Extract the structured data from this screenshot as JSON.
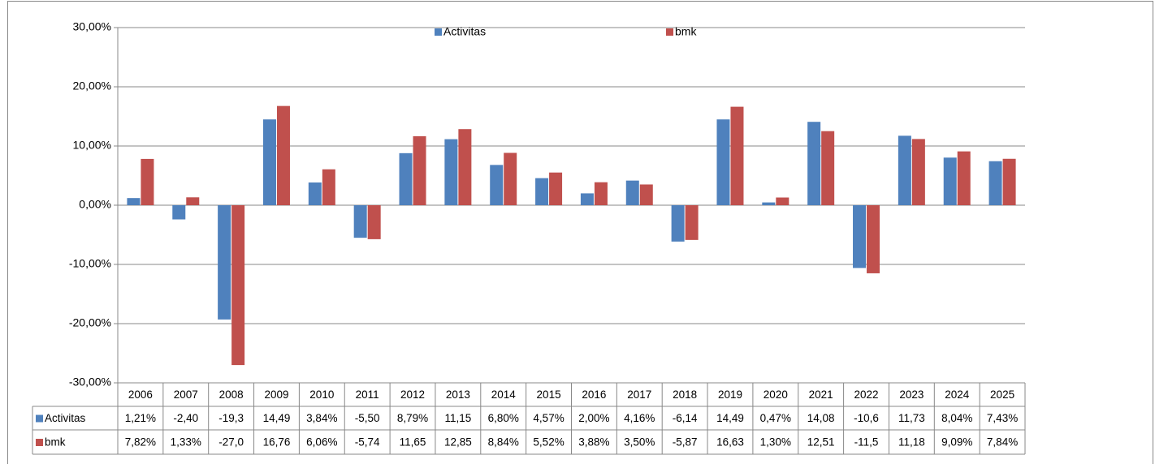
{
  "chart_data": {
    "type": "bar",
    "categories": [
      "2006",
      "2007",
      "2008",
      "2009",
      "2010",
      "2011",
      "2012",
      "2013",
      "2014",
      "2015",
      "2016",
      "2017",
      "2018",
      "2019",
      "2020",
      "2021",
      "2022",
      "2023",
      "2024",
      "2025"
    ],
    "series": [
      {
        "name": "Activitas",
        "color": "#4f81bd",
        "values": [
          1.21,
          -2.4,
          -19.3,
          14.49,
          3.84,
          -5.5,
          8.79,
          11.15,
          6.8,
          4.57,
          2.0,
          4.16,
          -6.14,
          14.49,
          0.47,
          14.08,
          -10.6,
          11.73,
          8.04,
          7.43
        ],
        "value_labels": [
          "1,21%",
          "-2,40",
          "-19,3",
          "14,49",
          "3,84%",
          "-5,50",
          "8,79%",
          "11,15",
          "6,80%",
          "4,57%",
          "2,00%",
          "4,16%",
          "-6,14",
          "14,49",
          "0,47%",
          "14,08",
          "-10,6",
          "11,73",
          "8,04%",
          "7,43%"
        ]
      },
      {
        "name": "bmk",
        "color": "#c0504d",
        "values": [
          7.82,
          1.33,
          -27.0,
          16.76,
          6.06,
          -5.74,
          11.65,
          12.85,
          8.84,
          5.52,
          3.88,
          3.5,
          -5.87,
          16.63,
          1.3,
          12.51,
          -11.5,
          11.18,
          9.09,
          7.84
        ],
        "value_labels": [
          "7,82%",
          "1,33%",
          "-27,0",
          "16,76",
          "6,06%",
          "-5,74",
          "11,65",
          "12,85",
          "8,84%",
          "5,52%",
          "3,88%",
          "3,50%",
          "-5,87",
          "16,63",
          "1,30%",
          "12,51",
          "-11,5",
          "11,18",
          "9,09%",
          "7,84%"
        ]
      }
    ],
    "ylim": [
      -30,
      30
    ],
    "yticks": [
      {
        "value": -30,
        "label": "-30,00%"
      },
      {
        "value": -20,
        "label": "-20,00%"
      },
      {
        "value": -10,
        "label": "-10,00%"
      },
      {
        "value": 0,
        "label": "0,00%"
      },
      {
        "value": 10,
        "label": "10,00%"
      },
      {
        "value": 20,
        "label": "20,00%"
      },
      {
        "value": 30,
        "label": "30,00%"
      }
    ],
    "grid": true,
    "legend": "top",
    "data_table": true
  }
}
